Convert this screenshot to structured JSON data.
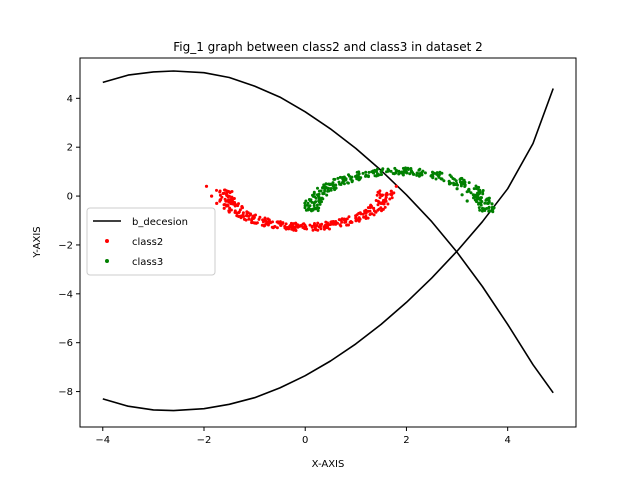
{
  "chart_data": {
    "type": "scatter",
    "title": "Fig_1 graph between class2 and class3 in dataset 2",
    "xlabel": "X-AXIS",
    "ylabel": "Y-AXIS",
    "xlim": [
      -4.45,
      5.35
    ],
    "ylim": [
      -9.45,
      5.65
    ],
    "xticks": [
      -4,
      -2,
      0,
      2,
      4
    ],
    "yticks": [
      -8,
      -6,
      -4,
      -2,
      0,
      2,
      4
    ],
    "grid": false,
    "legend_position": "center-left",
    "legend": [
      "b_decesion",
      "class2",
      "class3"
    ],
    "lines": [
      {
        "name": "b_decesion",
        "color": "#000000",
        "x": [
          -4.0,
          -3.5,
          -3.0,
          -2.6,
          -2.0,
          -1.5,
          -1.0,
          -0.5,
          0.0,
          0.5,
          1.0,
          1.5,
          2.0,
          2.5,
          3.0,
          3.5,
          4.0,
          4.5,
          4.9
        ],
        "y": [
          4.65,
          4.95,
          5.08,
          5.12,
          5.05,
          4.85,
          4.5,
          4.05,
          3.45,
          2.75,
          1.95,
          1.05,
          0.05,
          -1.05,
          -2.3,
          -3.7,
          -5.25,
          -6.9,
          -8.05
        ]
      },
      {
        "name": "b_decesion",
        "color": "#000000",
        "x": [
          -4.0,
          -3.5,
          -3.0,
          -2.6,
          -2.0,
          -1.5,
          -1.0,
          -0.5,
          0.0,
          0.5,
          1.0,
          1.5,
          2.0,
          2.5,
          3.0,
          3.5,
          4.0,
          4.5,
          4.9
        ],
        "y": [
          -8.3,
          -8.6,
          -8.75,
          -8.78,
          -8.7,
          -8.52,
          -8.25,
          -7.85,
          -7.35,
          -6.75,
          -6.05,
          -5.25,
          -4.35,
          -3.35,
          -2.25,
          -1.05,
          0.3,
          2.15,
          4.4
        ]
      }
    ],
    "series": [
      {
        "name": "class2",
        "color": "#ff0000",
        "arc": {
          "center": [
            0.0,
            0.25
          ],
          "radius": 1.6,
          "angle_range_deg": [
            180,
            360
          ]
        },
        "x": [
          -1.95,
          -1.85,
          -1.75,
          -1.6,
          -1.5,
          -1.35,
          -1.2,
          -1.0,
          -0.8,
          -0.6,
          -0.4,
          -0.2,
          0.0,
          0.2,
          0.4,
          0.6,
          0.8,
          1.0,
          1.2,
          1.35,
          1.5,
          1.6,
          1.7,
          1.8
        ],
        "y": [
          0.4,
          0.0,
          -0.3,
          -0.5,
          -0.65,
          -0.8,
          -0.95,
          -1.1,
          -1.2,
          -1.25,
          -1.3,
          -1.35,
          -1.3,
          -1.3,
          -1.2,
          -1.15,
          -1.05,
          -0.9,
          -0.7,
          -0.5,
          -0.3,
          -0.05,
          0.2,
          0.4
        ]
      },
      {
        "name": "class3",
        "color": "#008000",
        "arc": {
          "center": [
            1.85,
            -0.65
          ],
          "radius": 1.75,
          "angle_range_deg": [
            0,
            180
          ]
        },
        "x": [
          0.3,
          0.35,
          0.45,
          0.6,
          0.75,
          0.9,
          1.05,
          1.2,
          1.35,
          1.5,
          1.65,
          1.8,
          1.95,
          2.1,
          2.3,
          2.5,
          2.7,
          2.85,
          3.0,
          3.1,
          3.2
        ],
        "y": [
          -0.15,
          0.1,
          0.3,
          0.45,
          0.6,
          0.7,
          0.8,
          0.85,
          0.95,
          1.0,
          1.05,
          1.05,
          1.0,
          1.0,
          0.95,
          0.85,
          0.7,
          0.5,
          0.3,
          0.05,
          -0.2
        ]
      }
    ]
  }
}
